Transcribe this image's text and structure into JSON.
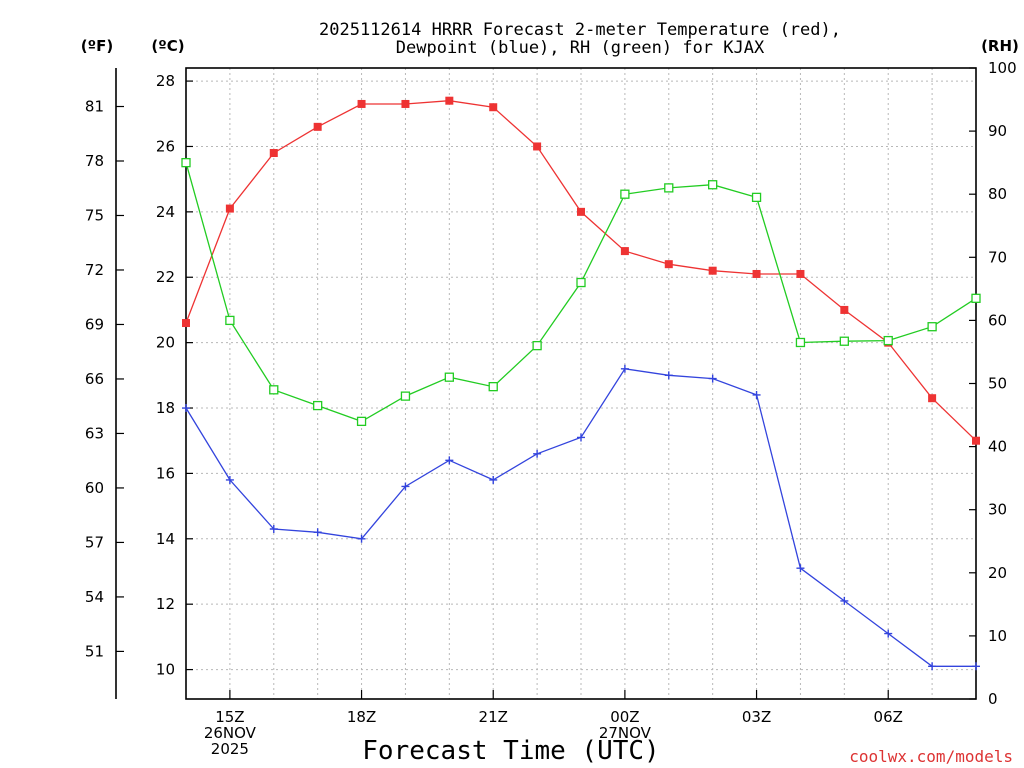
{
  "chart_data": {
    "type": "line",
    "title": [
      "2025112614 HRRR Forecast 2-meter Temperature (red),",
      "Dewpoint (blue), RH (green) for KJAX"
    ],
    "xlabel": "Forecast Time (UTC)",
    "units": {
      "fahrenheit": "(ºF)",
      "celsius": "(ºC)",
      "rh": "(RH)"
    },
    "x_hours": [
      14,
      15,
      16,
      17,
      18,
      19,
      20,
      21,
      22,
      23,
      24,
      25,
      26,
      27,
      28,
      29,
      30,
      31,
      32
    ],
    "xlim": [
      14,
      32
    ],
    "x_ticks": [
      {
        "hour": 15,
        "lines": [
          "15Z",
          "26NOV",
          "2025"
        ]
      },
      {
        "hour": 18,
        "lines": [
          "18Z"
        ]
      },
      {
        "hour": 21,
        "lines": [
          "21Z"
        ]
      },
      {
        "hour": 24,
        "lines": [
          "00Z",
          "27NOV"
        ]
      },
      {
        "hour": 27,
        "lines": [
          "03Z"
        ]
      },
      {
        "hour": 30,
        "lines": [
          "06Z"
        ]
      }
    ],
    "celsius_axis": {
      "ylim": [
        9.1,
        28.4
      ],
      "ticks": [
        10,
        12,
        14,
        16,
        18,
        20,
        22,
        24,
        26,
        28
      ]
    },
    "fahrenheit_axis": {
      "ticks": [
        51,
        54,
        57,
        60,
        63,
        66,
        69,
        72,
        75,
        78,
        81
      ]
    },
    "rh_axis": {
      "ylim": [
        0,
        100
      ],
      "ticks": [
        0,
        10,
        20,
        30,
        40,
        50,
        60,
        70,
        80,
        90,
        100
      ]
    },
    "series": [
      {
        "name": "2-meter Temperature",
        "axis": "celsius",
        "color": "#ee3333",
        "marker": "filled-square",
        "values": [
          20.6,
          24.1,
          25.8,
          26.6,
          27.3,
          27.3,
          27.4,
          27.2,
          26.0,
          24.0,
          22.8,
          22.4,
          22.2,
          22.1,
          22.1,
          21.0,
          20.0,
          18.3,
          17.0
        ]
      },
      {
        "name": "Dewpoint",
        "axis": "celsius",
        "color": "#3344dd",
        "marker": "plus",
        "values": [
          18.0,
          15.8,
          14.3,
          14.2,
          14.0,
          15.6,
          16.4,
          15.8,
          16.6,
          17.1,
          19.2,
          19.0,
          18.9,
          18.4,
          13.1,
          12.1,
          11.1,
          10.1,
          10.1
        ]
      },
      {
        "name": "RH",
        "axis": "rh",
        "color": "#22cc22",
        "marker": "open-square",
        "values": [
          85,
          60,
          49,
          46.5,
          44,
          48,
          51,
          49.5,
          56,
          66,
          80,
          81,
          81.5,
          79.5,
          56.5,
          56.7,
          56.8,
          59,
          63.5
        ]
      }
    ]
  },
  "credit": {
    "text": "coolwx.com/models",
    "color": "#dd3333"
  }
}
